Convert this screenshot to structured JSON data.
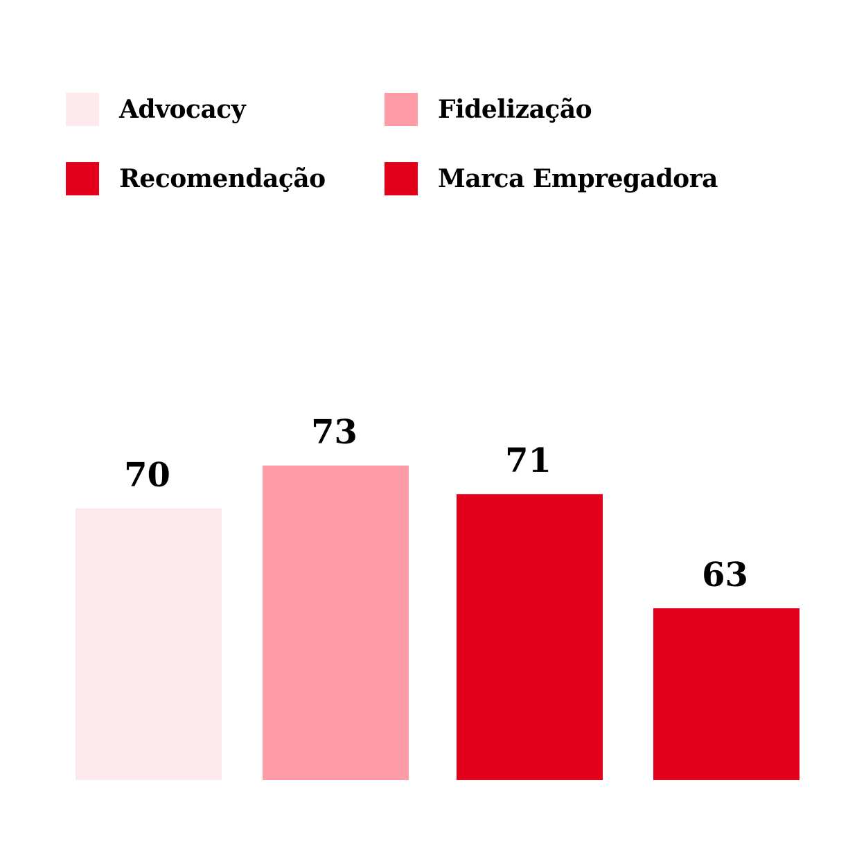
{
  "chart_data": {
    "type": "bar",
    "categories": [
      "Advocacy",
      "Fidelização",
      "Recomendação",
      "Marca Empregadora"
    ],
    "values": [
      70,
      73,
      71,
      63
    ],
    "colors": [
      "#fde8eb",
      "#fd9ba7",
      "#e3001b",
      "#e3001b"
    ],
    "title": "",
    "xlabel": "",
    "ylabel": "",
    "legend_position": "top",
    "grid": false
  }
}
